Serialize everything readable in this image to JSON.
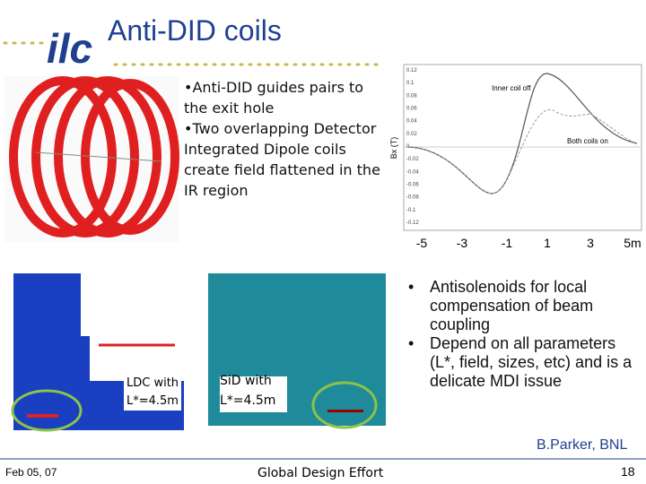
{
  "header": {
    "logo": "ilc",
    "title": "Anti-DID coils"
  },
  "top_bullets": [
    "Anti-DID guides pairs to the exit hole",
    "Two overlapping Detector Integrated Dipole coils create field flattened in the IR region"
  ],
  "graph": {
    "y_label": "Bx (T)",
    "annotations": [
      "Inner coil off",
      "Both coils on"
    ],
    "y_tick_labels": [
      "0.12",
      "0.1",
      "0.08",
      "0.06",
      "0.04",
      "0.02",
      "0",
      "-0.02",
      "-0.04",
      "-0.06",
      "-0.08",
      "-0.1",
      "-0.12"
    ],
    "x_tick_labels": [
      "-5",
      "-3",
      "-1",
      "1",
      "3",
      "5m"
    ]
  },
  "ldc_label": [
    "LDC with",
    "L*=4.5m"
  ],
  "sid_label": [
    "SiD with",
    "L*=4.5m"
  ],
  "right_bullets": [
    "Antisolenoids for local compensation of beam coupling",
    "Depend on all parameters (L*, field, sizes, etc) and is a delicate MDI issue"
  ],
  "credit": "B.Parker, BNL",
  "footer": {
    "date": "Feb 05, 07",
    "center": "Global Design Effort",
    "page": "18"
  }
}
